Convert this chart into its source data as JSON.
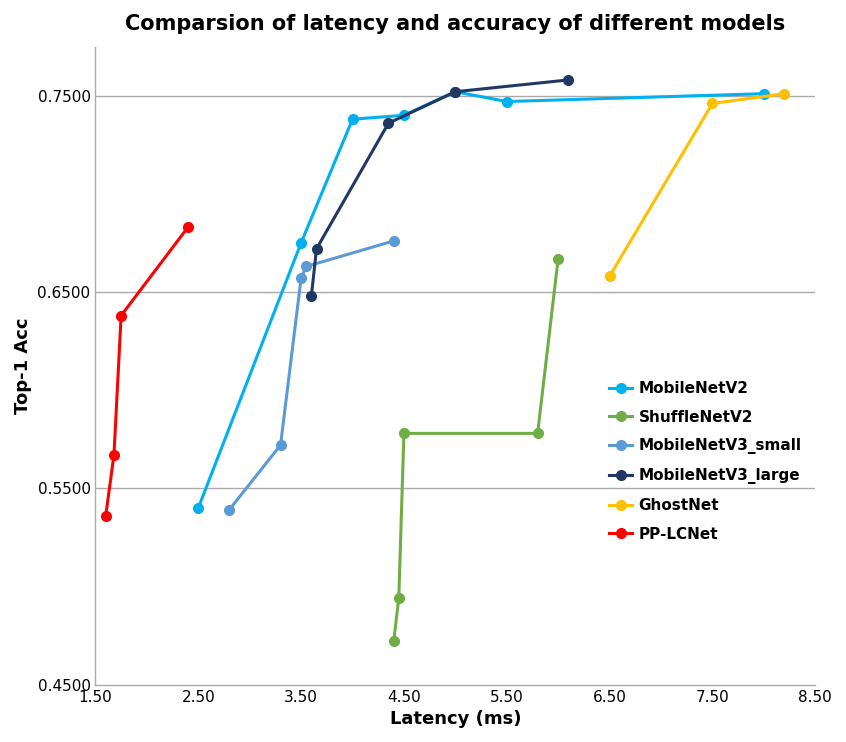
{
  "title": "Comparsion of latency and accuracy of different models",
  "xlabel": "Latency (ms)",
  "ylabel": "Top-1 Acc",
  "xlim": [
    1.5,
    8.5
  ],
  "ylim": [
    0.45,
    0.775
  ],
  "yticks": [
    0.45,
    0.55,
    0.65,
    0.75
  ],
  "ytick_labels": [
    "0.4500",
    "0.5500",
    "0.6500",
    "0.7500"
  ],
  "xticks": [
    1.5,
    2.5,
    3.5,
    4.5,
    5.5,
    6.5,
    7.5,
    8.5
  ],
  "xtick_labels": [
    "1.50",
    "2.50",
    "3.50",
    "4.50",
    "5.50",
    "6.50",
    "7.50",
    "8.50"
  ],
  "series": [
    {
      "name": "MobileNetV2",
      "color": "#00B0F0",
      "x": [
        2.5,
        3.5,
        4.0,
        4.5,
        5.0,
        5.5,
        8.0
      ],
      "y": [
        0.54,
        0.675,
        0.738,
        0.74,
        0.752,
        0.747,
        0.751
      ]
    },
    {
      "name": "ShuffleNetV2",
      "color": "#70AD47",
      "x": [
        4.4,
        4.45,
        4.5,
        5.8,
        6.0
      ],
      "y": [
        0.472,
        0.494,
        0.578,
        0.578,
        0.667
      ]
    },
    {
      "name": "MobileNetV3_small",
      "color": "#5B9BD5",
      "x": [
        2.8,
        3.3,
        3.5,
        3.55,
        4.4
      ],
      "y": [
        0.539,
        0.572,
        0.657,
        0.663,
        0.676
      ]
    },
    {
      "name": "MobileNetV3_large",
      "color": "#1F3864",
      "x": [
        3.6,
        3.65,
        4.35,
        5.0,
        6.1
      ],
      "y": [
        0.648,
        0.672,
        0.736,
        0.752,
        0.758
      ]
    },
    {
      "name": "GhostNet",
      "color": "#FFC000",
      "x": [
        6.5,
        7.5,
        8.2
      ],
      "y": [
        0.658,
        0.746,
        0.751
      ]
    },
    {
      "name": "PP-LCNet",
      "color": "#FF0000",
      "x": [
        1.6,
        1.68,
        1.75,
        2.4
      ],
      "y": [
        0.536,
        0.567,
        0.638,
        0.683
      ]
    }
  ],
  "background_color": "#FFFFFF",
  "grid_color": "#AAAAAA",
  "title_fontsize": 15,
  "label_fontsize": 13,
  "tick_fontsize": 11,
  "legend_fontsize": 11
}
